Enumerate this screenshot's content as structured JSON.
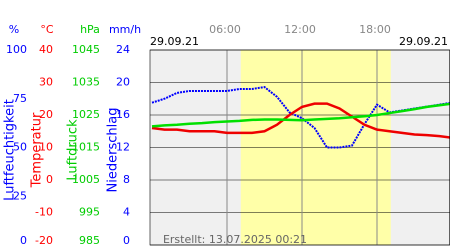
{
  "chart_data": {
    "type": "line",
    "date_left": "29.09.21",
    "date_right": "29.09.21",
    "footer": "Erstellt: 13.07.2025 00:21",
    "xlim": [
      0,
      24
    ],
    "xticks": [
      {
        "value": 6,
        "label": "06:00"
      },
      {
        "value": 12,
        "label": "12:00"
      },
      {
        "value": 18,
        "label": "18:00"
      }
    ],
    "daylight": [
      7.1,
      19.1
    ],
    "grid": true,
    "axes": [
      {
        "unit": "%",
        "title": "Luftfeuchtigkeit",
        "color": "#0000ff",
        "ylim": [
          0,
          100
        ],
        "yticks": [
          0,
          25,
          50,
          75,
          100
        ]
      },
      {
        "unit": "°C",
        "title": "Temperatur",
        "color": "#ff0000",
        "ylim": [
          -20,
          40
        ],
        "yticks": [
          -20,
          -10,
          0,
          10,
          20,
          30,
          40
        ]
      },
      {
        "unit": "hPa",
        "title": "Luftdruck",
        "color": "#00cc00",
        "ylim": [
          985,
          1045
        ],
        "yticks": [
          985,
          995,
          1005,
          1015,
          1025,
          1035,
          1045
        ]
      },
      {
        "unit": "mm/h",
        "title": "Niederschlag",
        "color": "#0000ff",
        "ylim": [
          0,
          24
        ],
        "yticks": [
          0,
          4,
          8,
          12,
          16,
          20,
          24
        ]
      }
    ],
    "x": [
      0,
      1,
      2,
      3,
      4,
      5,
      6,
      7,
      8,
      9,
      10,
      11,
      12,
      13,
      14,
      15,
      16,
      17,
      18,
      19,
      20,
      21,
      22,
      23,
      24
    ],
    "series": [
      {
        "axis": 0,
        "color": "#0000ff",
        "values": [
          73,
          75,
          78,
          79,
          79,
          79,
          79,
          80,
          80,
          81,
          76,
          68,
          65,
          60,
          50,
          50,
          51,
          62,
          72,
          68,
          69,
          70,
          71,
          72,
          73
        ]
      },
      {
        "axis": 1,
        "color": "#ee0000",
        "values": [
          16,
          15.5,
          15.5,
          15,
          15,
          15,
          14.5,
          14.5,
          14.5,
          15,
          17,
          20,
          22.5,
          23.5,
          23.5,
          22,
          19.5,
          17,
          15.5,
          15,
          14.5,
          14,
          13.8,
          13.5,
          13
        ]
      },
      {
        "axis": 2,
        "color": "#00e000",
        "values": [
          1021.5,
          1021.8,
          1022,
          1022.3,
          1022.5,
          1022.8,
          1023,
          1023.2,
          1023.5,
          1023.6,
          1023.6,
          1023.5,
          1023.4,
          1023.6,
          1023.8,
          1024,
          1024.3,
          1024.6,
          1025,
          1025.6,
          1026.2,
          1026.8,
          1027.5,
          1028,
          1028.5
        ]
      }
    ]
  }
}
